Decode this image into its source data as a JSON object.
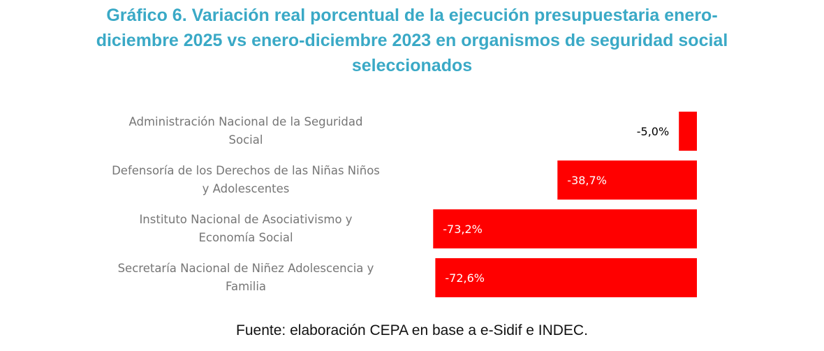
{
  "chart_data": {
    "type": "bar",
    "orientation": "horizontal",
    "title": "Gráfico 6. Variación real porcentual de la ejecución presupuestaria enero-diciembre 2025 vs enero-diciembre 2023 en organismos de seguridad social seleccionados",
    "title_lines": [
      "Gráfico 6. Variación real porcentual de la ejecución presupuestaria enero-",
      "diciembre 2025 vs enero-diciembre 2023 en organismos de seguridad social",
      "seleccionados"
    ],
    "categories": [
      "Administración Nacional de la Seguridad Social",
      "Defensoría de los Derechos de las Niñas Niños y Adolescentes",
      "Instituto Nacional de Asociativismo y Economía Social",
      "Secretaría Nacional de Niñez Adolescencia y Familia"
    ],
    "category_lines": [
      [
        "Administración Nacional de la Seguridad",
        "Social"
      ],
      [
        "Defensoría de los Derechos de las Niñas Niños",
        "y Adolescentes"
      ],
      [
        "Instituto Nacional de Asociativismo y",
        "Economía Social"
      ],
      [
        "Secretaría Nacional de Niñez Adolescencia y",
        "Familia"
      ]
    ],
    "values": [
      -5.0,
      -38.7,
      -73.2,
      -72.6
    ],
    "data_labels": [
      "-5,0%",
      "-38,7%",
      "-73,2%",
      "-72,6%"
    ],
    "unit": "%",
    "xlabel": "",
    "ylabel": "",
    "xlim": [
      -75,
      0
    ],
    "grid": false,
    "legend": "none",
    "colors": {
      "bar": "#ff0000",
      "title": "#3aa9c6",
      "category_text": "#767676"
    }
  },
  "source": "Fuente: elaboración CEPA en base a e-Sidif e INDEC."
}
